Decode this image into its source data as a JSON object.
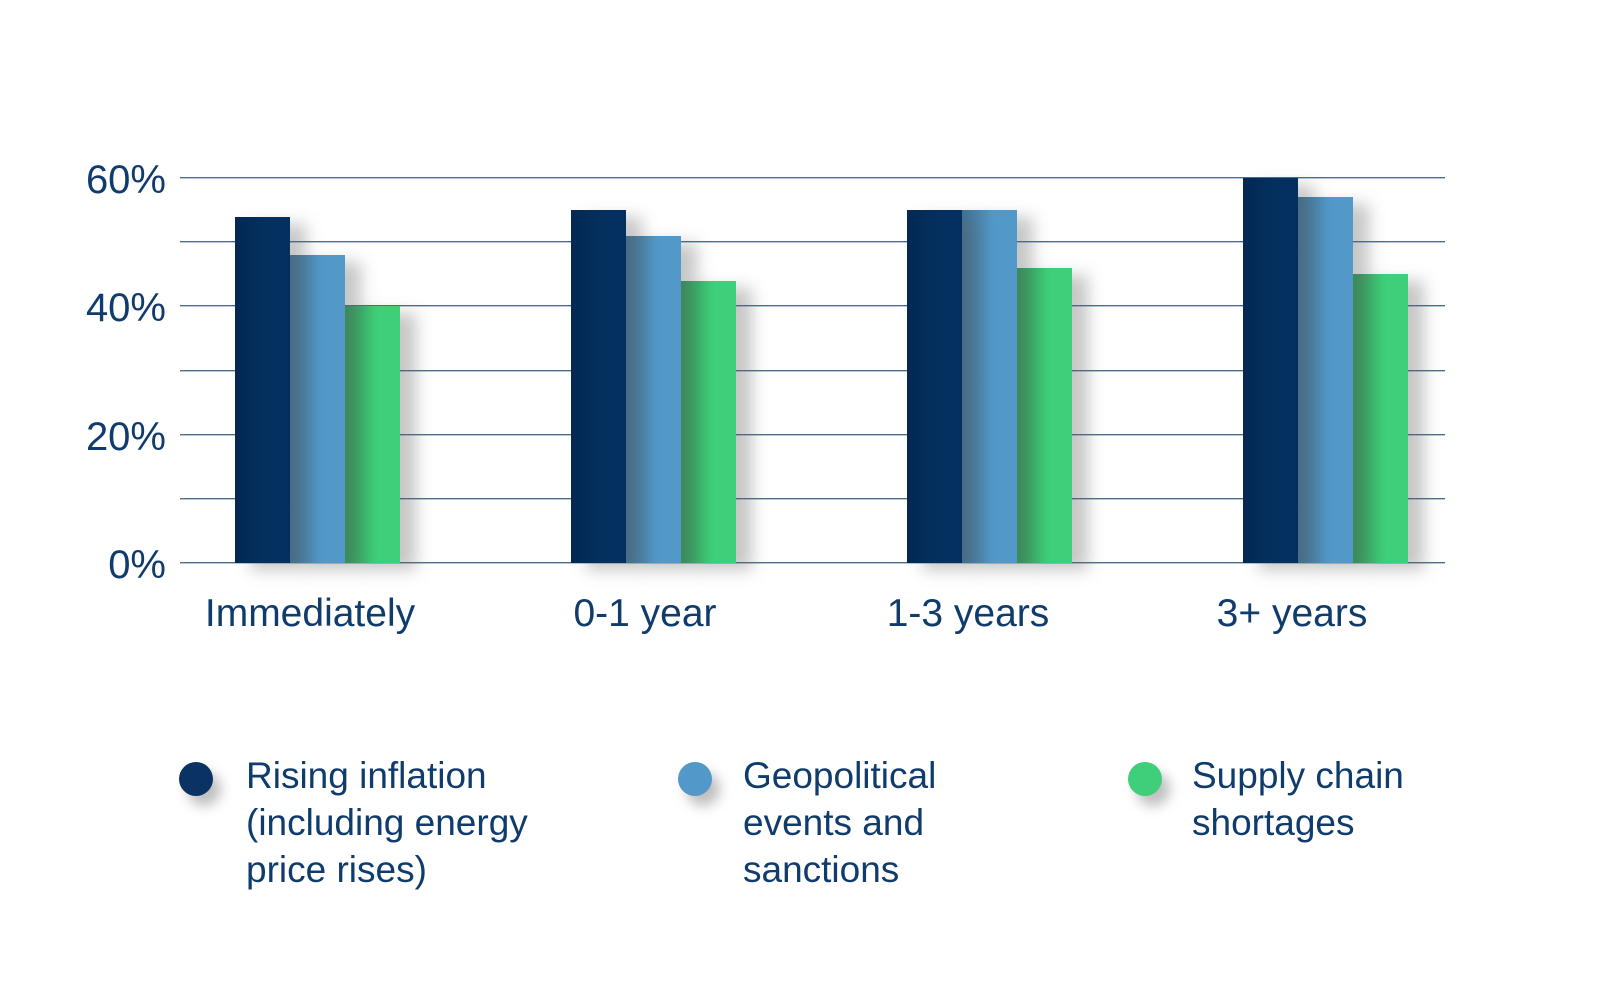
{
  "chart_data": {
    "type": "bar",
    "title": "",
    "xlabel": "",
    "ylabel": "",
    "categories": [
      "Immediately",
      "0-1 year",
      "1-3 years",
      "3+ years"
    ],
    "series": [
      {
        "name": "Rising inflation (including energy price rises)",
        "color": "#04305f",
        "color_edge": "#032853",
        "values": [
          54,
          55,
          55,
          60
        ]
      },
      {
        "name": "Geopolitical events and sanctions",
        "color": "#5298c8",
        "color_edge": "#3d7398",
        "values": [
          48,
          51,
          55,
          57
        ]
      },
      {
        "name": "Supply chain shortages",
        "color": "#3fce79",
        "color_edge": "#2c9e5b",
        "values": [
          40,
          44,
          46,
          45
        ]
      }
    ],
    "ylim": [
      0,
      60
    ],
    "y_ticks": [
      0,
      20,
      40,
      60
    ],
    "y_tick_labels": [
      "0%",
      "20%",
      "40%",
      "60%"
    ],
    "gridline_step": 10,
    "grid_on": true,
    "legend_position": "bottom",
    "legend": [
      {
        "lines": [
          "Rising inflation",
          "(including energy",
          "price rises)"
        ],
        "color": "#0a3263"
      },
      {
        "lines": [
          "Geopolitical",
          "events and",
          "sanctions"
        ],
        "color": "#5298c8"
      },
      {
        "lines": [
          "Supply chain",
          "shortages"
        ],
        "color": "#3fce79"
      }
    ],
    "style": {
      "text_color": "#103b6d",
      "gridline_color_dark": "#4a6d90",
      "gridline_color_light": "#b9c7d6",
      "background": "#ffffff"
    }
  }
}
